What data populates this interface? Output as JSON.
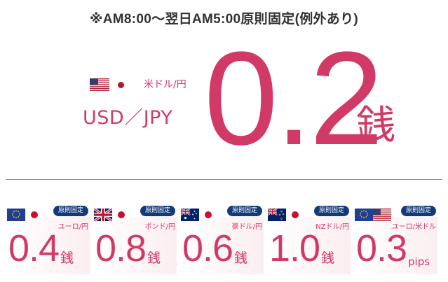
{
  "notice": "※AM8:00〜翌日AM5:00原則固定(例外あり)",
  "hero": {
    "pair_jp": "米ドル/円",
    "pair": "USD／JPY",
    "value": "0.2",
    "unit": "銭",
    "flag_icons": [
      "us-flag-icon",
      "japan-flag-icon"
    ]
  },
  "badge_label": "原則固定",
  "cards": [
    {
      "pair_jp": "ユーロ/円",
      "value": "0.4",
      "unit": "銭",
      "flags": [
        "eu-flag-icon",
        "japan-flag-icon"
      ]
    },
    {
      "pair_jp": "ポンド/円",
      "value": "0.8",
      "unit": "銭",
      "flags": [
        "uk-flag-icon",
        "japan-flag-icon"
      ]
    },
    {
      "pair_jp": "豪ドル/円",
      "value": "0.6",
      "unit": "銭",
      "flags": [
        "australia-flag-icon",
        "japan-flag-icon"
      ]
    },
    {
      "pair_jp": "NZドル/円",
      "value": "1.0",
      "unit": "銭",
      "flags": [
        "nz-flag-icon",
        "japan-flag-icon"
      ]
    },
    {
      "pair_jp": "ユーロ/米ドル",
      "value": "0.3",
      "unit": "pips",
      "flags": [
        "eu-flag-icon",
        "us-flag-icon"
      ]
    }
  ],
  "colors": {
    "accent": "#d13a67",
    "badge": "#123a78",
    "text": "#333333"
  }
}
